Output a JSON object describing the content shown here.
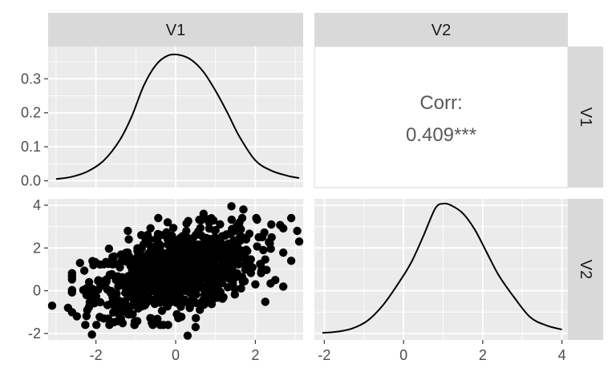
{
  "chart_data": {
    "type": "scatter-matrix",
    "variables": [
      "V1",
      "V2"
    ],
    "colors": {
      "panel_bg": "#ebebeb",
      "grid_major": "#ffffff",
      "strip_bg": "#d9d9d9",
      "curve": "#000000",
      "point": "#000000"
    },
    "panels": {
      "v1_density": {
        "type": "line",
        "xlim": [
          -3.2,
          3.2
        ],
        "ylim": [
          -0.02,
          0.395
        ],
        "y_ticks": [
          0.0,
          0.1,
          0.2,
          0.3
        ],
        "y_tick_labels": [
          "0.0",
          "0.1",
          "0.2",
          "0.3"
        ],
        "x": [
          -3.0,
          -2.6,
          -2.2,
          -1.8,
          -1.4,
          -1.1,
          -0.8,
          -0.5,
          -0.2,
          0.1,
          0.4,
          0.7,
          1.0,
          1.3,
          1.6,
          2.0,
          2.4,
          2.8,
          3.1
        ],
        "y": [
          0.005,
          0.012,
          0.028,
          0.06,
          0.12,
          0.19,
          0.28,
          0.34,
          0.368,
          0.37,
          0.355,
          0.32,
          0.265,
          0.2,
          0.13,
          0.06,
          0.03,
          0.015,
          0.008
        ]
      },
      "correlation": {
        "label": "Corr:",
        "value": "0.409***"
      },
      "scatter": {
        "type": "scatter",
        "xlim": [
          -3.2,
          3.2
        ],
        "ylim": [
          -2.3,
          4.3
        ],
        "x_ticks": [
          -2,
          0,
          2
        ],
        "x_tick_labels": [
          "-2",
          "0",
          "2"
        ],
        "y_ticks": [
          -2,
          0,
          2,
          4
        ],
        "y_tick_labels": [
          "-2",
          "0",
          "2",
          "4"
        ],
        "n_points": 1000,
        "correlation": 0.409,
        "x_mean": 0.0,
        "x_sd": 1.0,
        "y_mean": 0.9,
        "y_sd": 1.0,
        "outliers": [
          [
            -3.1,
            -0.7
          ],
          [
            -2.7,
            -0.8
          ],
          [
            -2.1,
            -2.05
          ],
          [
            -2.6,
            0.7
          ],
          [
            -2.4,
            1.3
          ],
          [
            -1.2,
            2.8
          ],
          [
            -0.2,
            3.2
          ],
          [
            0.7,
            3.6
          ],
          [
            1.4,
            3.95
          ],
          [
            1.7,
            3.8
          ],
          [
            2.4,
            3.1
          ],
          [
            2.9,
            3.4
          ],
          [
            3.1,
            2.3
          ],
          [
            3.05,
            2.8
          ],
          [
            2.9,
            1.4
          ],
          [
            2.5,
            0.5
          ],
          [
            2.0,
            0.3
          ],
          [
            0.3,
            -2.1
          ],
          [
            0.5,
            -1.7
          ],
          [
            -0.6,
            -1.5
          ],
          [
            1.2,
            -0.3
          ],
          [
            -1.8,
            -1.3
          ],
          [
            2.2,
            1.9
          ]
        ]
      },
      "v2_density": {
        "type": "line",
        "xlim": [
          -2.25,
          4.15
        ],
        "x_ticks": [
          -2,
          0,
          2,
          4
        ],
        "x_tick_labels": [
          "-2",
          "0",
          "2",
          "4"
        ],
        "ylim": [
          -0.02,
          0.415
        ],
        "x": [
          -2.05,
          -1.7,
          -1.3,
          -0.9,
          -0.5,
          -0.1,
          0.2,
          0.5,
          0.8,
          1.0,
          1.2,
          1.5,
          1.8,
          2.1,
          2.4,
          2.8,
          3.2,
          3.6,
          4.0
        ],
        "y": [
          0.002,
          0.005,
          0.015,
          0.04,
          0.09,
          0.16,
          0.22,
          0.3,
          0.385,
          0.4,
          0.395,
          0.37,
          0.32,
          0.25,
          0.18,
          0.11,
          0.05,
          0.025,
          0.012
        ]
      }
    }
  }
}
